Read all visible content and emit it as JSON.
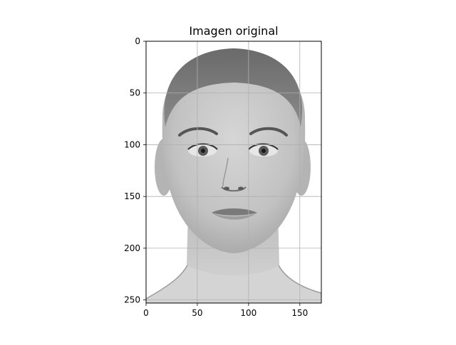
{
  "chart_data": {
    "type": "image",
    "title": "Imagen original",
    "xlabel": "",
    "ylabel": "",
    "xlim": [
      0,
      171
    ],
    "ylim": [
      253,
      0
    ],
    "x_ticks": [
      0,
      50,
      100,
      150
    ],
    "y_ticks": [
      0,
      50,
      100,
      150,
      200,
      250
    ],
    "x_tick_labels": [
      "0",
      "50",
      "100",
      "150"
    ],
    "y_tick_labels": [
      "0",
      "50",
      "100",
      "150",
      "200",
      "250"
    ],
    "grid": true,
    "colormap": "gray",
    "image_content": "grayscale-portrait-face-icon"
  },
  "colors": {
    "frame": "#000000",
    "grid": "#b0b0b0",
    "background": "#ffffff"
  }
}
